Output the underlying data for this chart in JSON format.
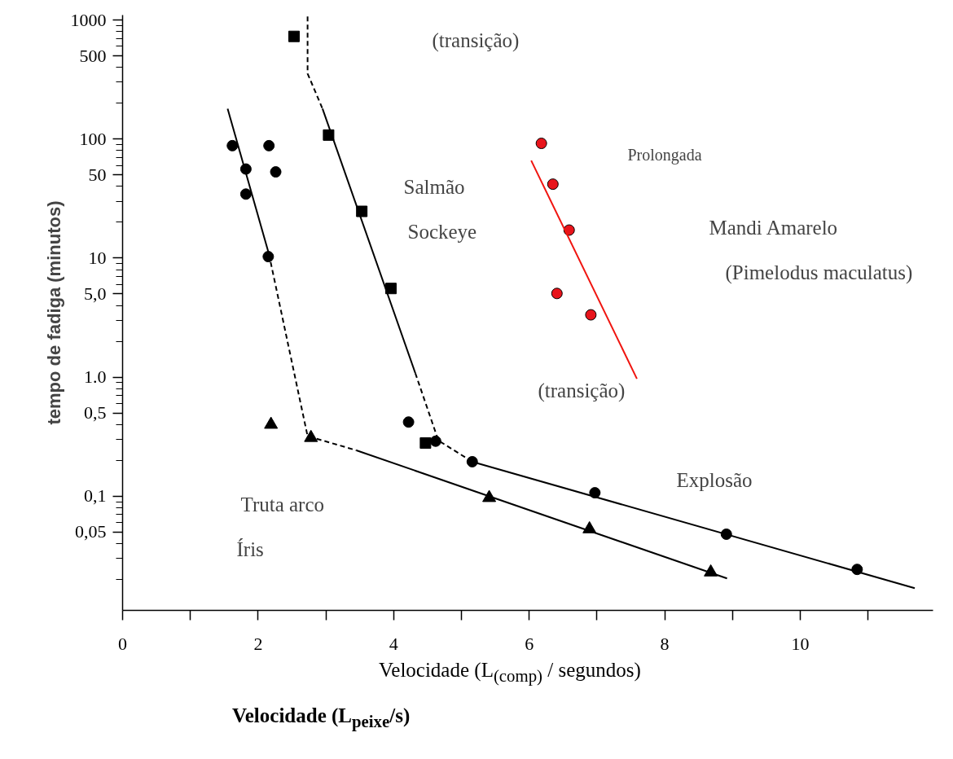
{
  "chart_data": {
    "type": "scatter",
    "xlabel": "Velocidade (L$_{(comp)}$ / segundos)",
    "ylabel": "tempo de fadiga (minutos)",
    "log": "y",
    "grid": false,
    "xlim": [
      0,
      11.96
    ],
    "ylim": [
      0.011,
      1100
    ],
    "xticks": [
      0,
      {
        "value": 1,
        "label": null
      },
      2,
      {
        "value": 3,
        "label": null
      },
      4,
      {
        "value": 5,
        "label": null
      },
      6,
      {
        "value": 7,
        "label": null
      },
      8,
      {
        "value": 9,
        "label": null
      },
      10,
      {
        "value": 11,
        "label": null
      }
    ],
    "yticks": [
      1000,
      500,
      100,
      50,
      10,
      {
        "value": 5,
        "label": "5,0"
      },
      {
        "value": 1,
        "label": "1.0"
      },
      {
        "value": 0.5,
        "label": "0,5"
      },
      {
        "value": 0.1,
        "label": "0,1"
      },
      {
        "value": 0.05,
        "label": "0,05"
      }
    ],
    "series": [
      {
        "marker": "circle",
        "color": "#000000",
        "x": [
          1.62,
          1.82,
          2.16,
          2.26,
          1.82,
          2.15
        ],
        "values": [
          88,
          56,
          88,
          53,
          34.5,
          10.3
        ]
      },
      {
        "type": "line",
        "line_style": "solid",
        "color": "#000000",
        "x": [
          1.55,
          2.16
        ],
        "values": [
          180,
          10.8
        ]
      },
      {
        "type": "line",
        "line_style": "dashed",
        "color": "#000000",
        "x": [
          2.16,
          2.73,
          3.45
        ],
        "values": [
          10.8,
          0.32,
          0.243
        ]
      },
      {
        "marker": "triangle",
        "color": "#000000",
        "x": [
          2.19,
          2.78,
          5.41,
          6.89,
          8.68
        ],
        "values": [
          0.4,
          0.31,
          0.097,
          0.053,
          0.023
        ]
      },
      {
        "type": "line",
        "line_style": "solid",
        "color": "#000000",
        "x": [
          3.45,
          8.92
        ],
        "values": [
          0.243,
          0.0204
        ]
      },
      {
        "marker": "square",
        "color": "#000000",
        "x": [
          2.53,
          3.04,
          3.53,
          3.96,
          4.47
        ],
        "values": [
          728,
          108,
          24.7,
          5.56,
          0.28
        ]
      },
      {
        "type": "line",
        "line_style": "dashed",
        "color": "#000000",
        "x": [
          2.73,
          2.73,
          2.95
        ],
        "values": [
          1070,
          355,
          180
        ]
      },
      {
        "type": "line",
        "line_style": "solid",
        "color": "#000000",
        "x": [
          2.95,
          4.32
        ],
        "values": [
          180,
          1.08
        ]
      },
      {
        "type": "line",
        "line_style": "dashed",
        "color": "#000000",
        "x": [
          4.32,
          4.66,
          5.16
        ],
        "values": [
          1.08,
          0.294,
          0.195
        ]
      },
      {
        "marker": "circle",
        "color": "#000000",
        "x": [
          4.22,
          4.62,
          5.16,
          6.97,
          8.91,
          10.84
        ],
        "values": [
          0.42,
          0.29,
          0.195,
          0.107,
          0.048,
          0.0243
        ]
      },
      {
        "type": "line",
        "line_style": "solid",
        "color": "#000000",
        "x": [
          5.16,
          11.69
        ],
        "values": [
          0.195,
          0.0169
        ]
      },
      {
        "marker": "circle",
        "color": "#e8141b",
        "x": [
          6.18,
          6.35,
          6.59,
          6.41,
          6.91
        ],
        "values": [
          92,
          41.8,
          17.2,
          5.05,
          3.34
        ]
      },
      {
        "type": "line",
        "line_style": "solid",
        "color": "#f0140f",
        "x": [
          6.03,
          7.59
        ],
        "values": [
          66,
          0.97
        ]
      }
    ],
    "annotations": [
      "(transição)",
      "(transição)",
      "Prolongada",
      "Salmão",
      "Sockeye",
      "Mandi Amarelo",
      "(Pimelodus maculatus)",
      "Explosão",
      "Truta arco",
      "Íris",
      "Velocidade (L$_{peixe}$/s)"
    ]
  }
}
